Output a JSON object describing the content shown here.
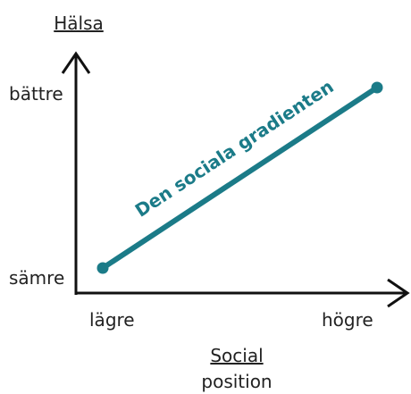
{
  "title": "Hälsa",
  "y_axis": {
    "high": "bättre",
    "low": "sämre"
  },
  "x_axis": {
    "title": [
      "Social",
      "position"
    ],
    "low": "lägre",
    "high": "högre"
  },
  "line_label": "Den sociala gradienten"
}
